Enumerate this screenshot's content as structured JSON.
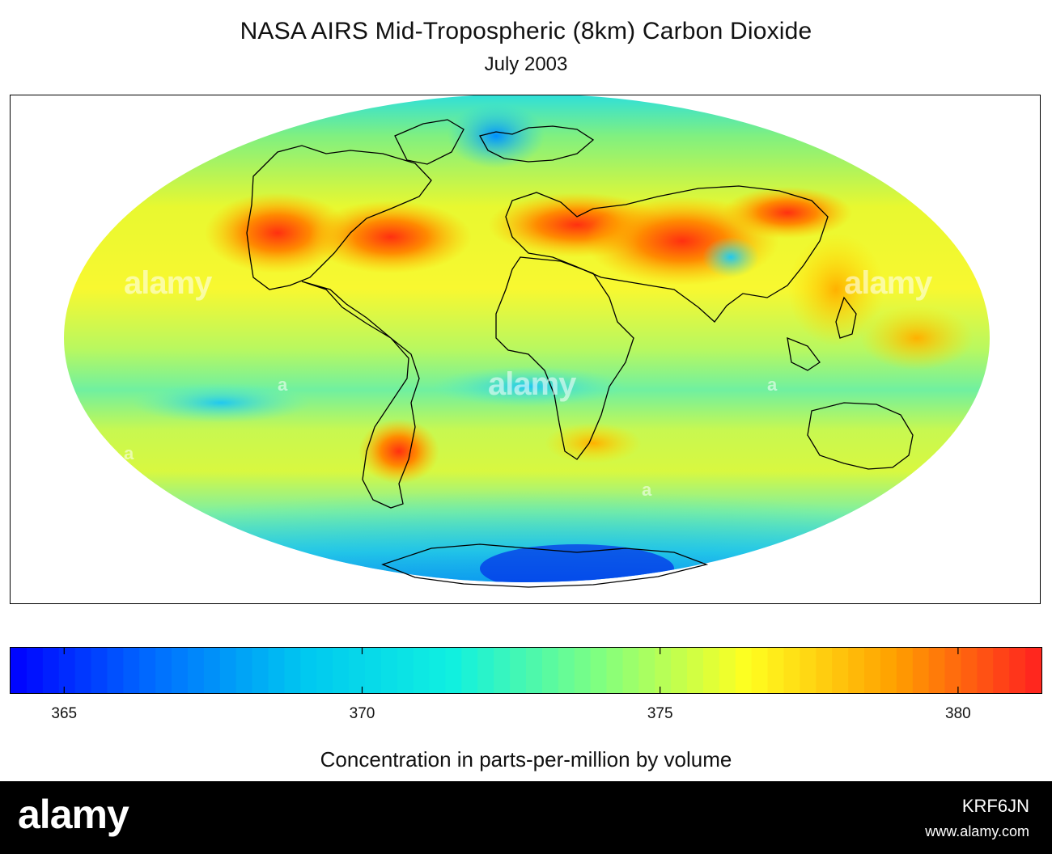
{
  "figure": {
    "title": "NASA AIRS Mid-Tropospheric (8km) Carbon Dioxide",
    "subtitle": "July 2003"
  },
  "map": {
    "projection": "mollweide",
    "variable": "carbon dioxide",
    "palette": [
      "#0000ff",
      "#0070ff",
      "#00c8f0",
      "#10f0e0",
      "#80ff80",
      "#ffff20",
      "#ffa000",
      "#ff2020"
    ]
  },
  "colorbar": {
    "min": 364.1,
    "max": 381.4,
    "ticks": [
      {
        "value": 365,
        "label": "365"
      },
      {
        "value": 370,
        "label": "370"
      },
      {
        "value": 375,
        "label": "375"
      },
      {
        "value": 380,
        "label": "380"
      }
    ],
    "label": "Concentration in parts-per-million by volume"
  },
  "watermark": {
    "text": "alamy",
    "small": "a"
  },
  "footer": {
    "logo": "alamy",
    "image_id": "KRF6JN",
    "url": "www.alamy.com"
  }
}
